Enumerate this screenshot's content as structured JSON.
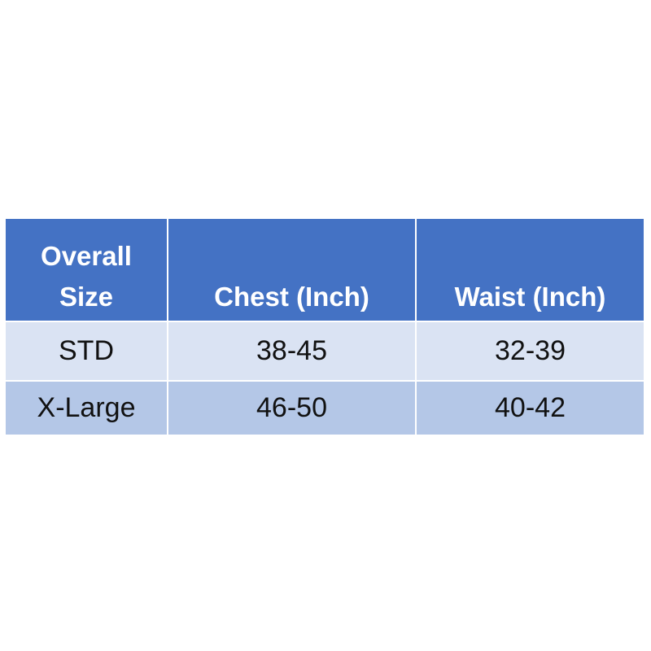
{
  "table": {
    "header": [
      "Overall Size",
      "Chest (Inch)",
      "Waist (Inch)"
    ],
    "rows": [
      [
        "STD",
        "38-45",
        "32-39"
      ],
      [
        "X-Large",
        "46-50",
        "40-42"
      ]
    ]
  }
}
